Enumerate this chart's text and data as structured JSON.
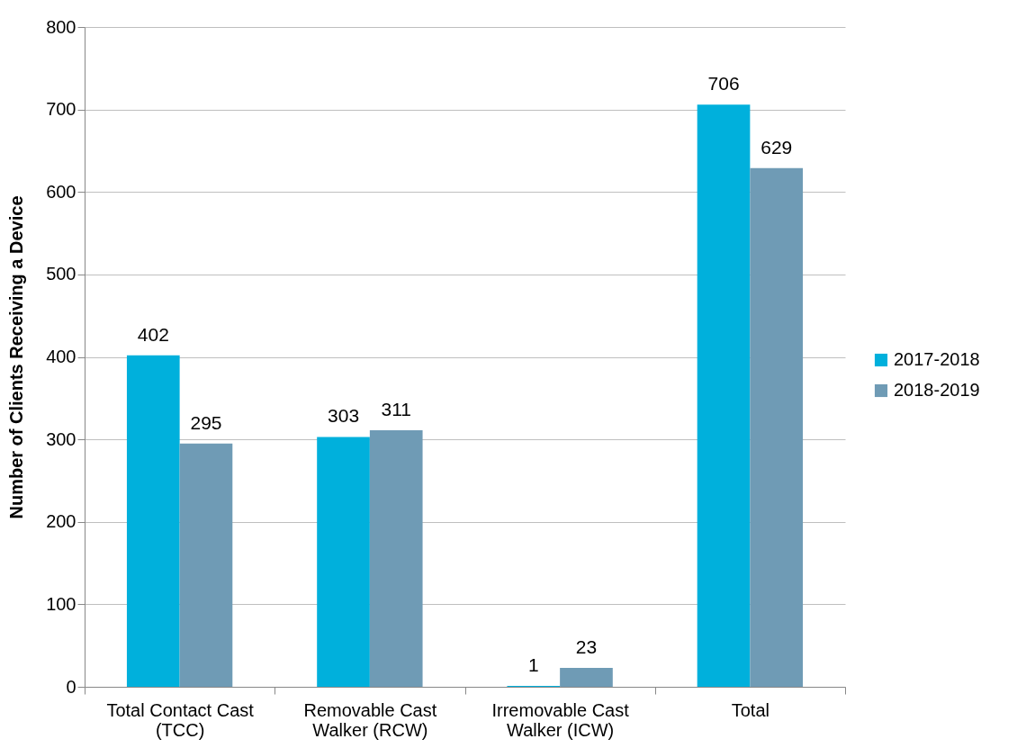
{
  "chart_data": {
    "type": "bar",
    "ylabel": "Number of Clients Receiving a Device",
    "categories": [
      "Total Contact Cast (TCC)",
      "Removable Cast Walker (RCW)",
      "Irremovable Cast Walker (ICW)",
      "Total"
    ],
    "series": [
      {
        "name": "2017-2018",
        "color": "#00b0dc",
        "values": [
          402,
          303,
          1,
          706
        ]
      },
      {
        "name": "2018-2019",
        "color": "#6f9bb5",
        "values": [
          295,
          311,
          23,
          629
        ]
      }
    ],
    "ylim": [
      0,
      800
    ],
    "yticks": [
      0,
      100,
      200,
      300,
      400,
      500,
      600,
      700,
      800
    ],
    "grid": "y",
    "legend": "right",
    "data_labels": true
  }
}
